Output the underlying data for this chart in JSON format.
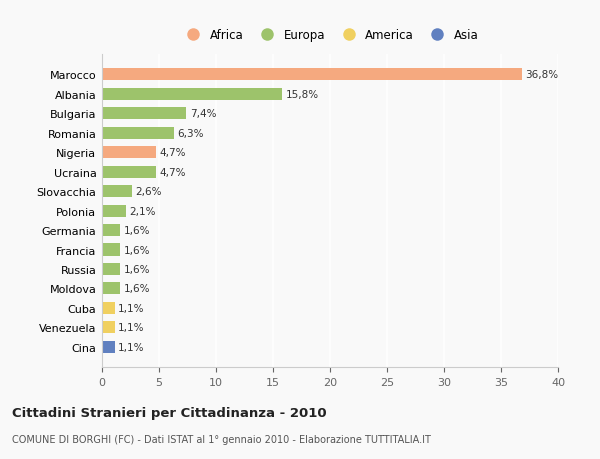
{
  "countries": [
    "Marocco",
    "Albania",
    "Bulgaria",
    "Romania",
    "Nigeria",
    "Ucraina",
    "Slovacchia",
    "Polonia",
    "Germania",
    "Francia",
    "Russia",
    "Moldova",
    "Cuba",
    "Venezuela",
    "Cina"
  ],
  "values": [
    36.8,
    15.8,
    7.4,
    6.3,
    4.7,
    4.7,
    2.6,
    2.1,
    1.6,
    1.6,
    1.6,
    1.6,
    1.1,
    1.1,
    1.1
  ],
  "labels": [
    "36,8%",
    "15,8%",
    "7,4%",
    "6,3%",
    "4,7%",
    "4,7%",
    "2,6%",
    "2,1%",
    "1,6%",
    "1,6%",
    "1,6%",
    "1,6%",
    "1,1%",
    "1,1%",
    "1,1%"
  ],
  "colors": [
    "#F5A97F",
    "#9DC36B",
    "#9DC36B",
    "#9DC36B",
    "#F5A97F",
    "#9DC36B",
    "#9DC36B",
    "#9DC36B",
    "#9DC36B",
    "#9DC36B",
    "#9DC36B",
    "#9DC36B",
    "#F0D060",
    "#F0D060",
    "#6080C0"
  ],
  "legend": [
    {
      "label": "Africa",
      "color": "#F5A97F"
    },
    {
      "label": "Europa",
      "color": "#9DC36B"
    },
    {
      "label": "America",
      "color": "#F0D060"
    },
    {
      "label": "Asia",
      "color": "#6080C0"
    }
  ],
  "title": "Cittadini Stranieri per Cittadinanza - 2010",
  "subtitle": "COMUNE DI BORGHI (FC) - Dati ISTAT al 1° gennaio 2010 - Elaborazione TUTTITALIA.IT",
  "xlim": [
    0,
    40
  ],
  "xticks": [
    0,
    5,
    10,
    15,
    20,
    25,
    30,
    35,
    40
  ],
  "background_color": "#f9f9f9",
  "grid_color": "#ffffff"
}
